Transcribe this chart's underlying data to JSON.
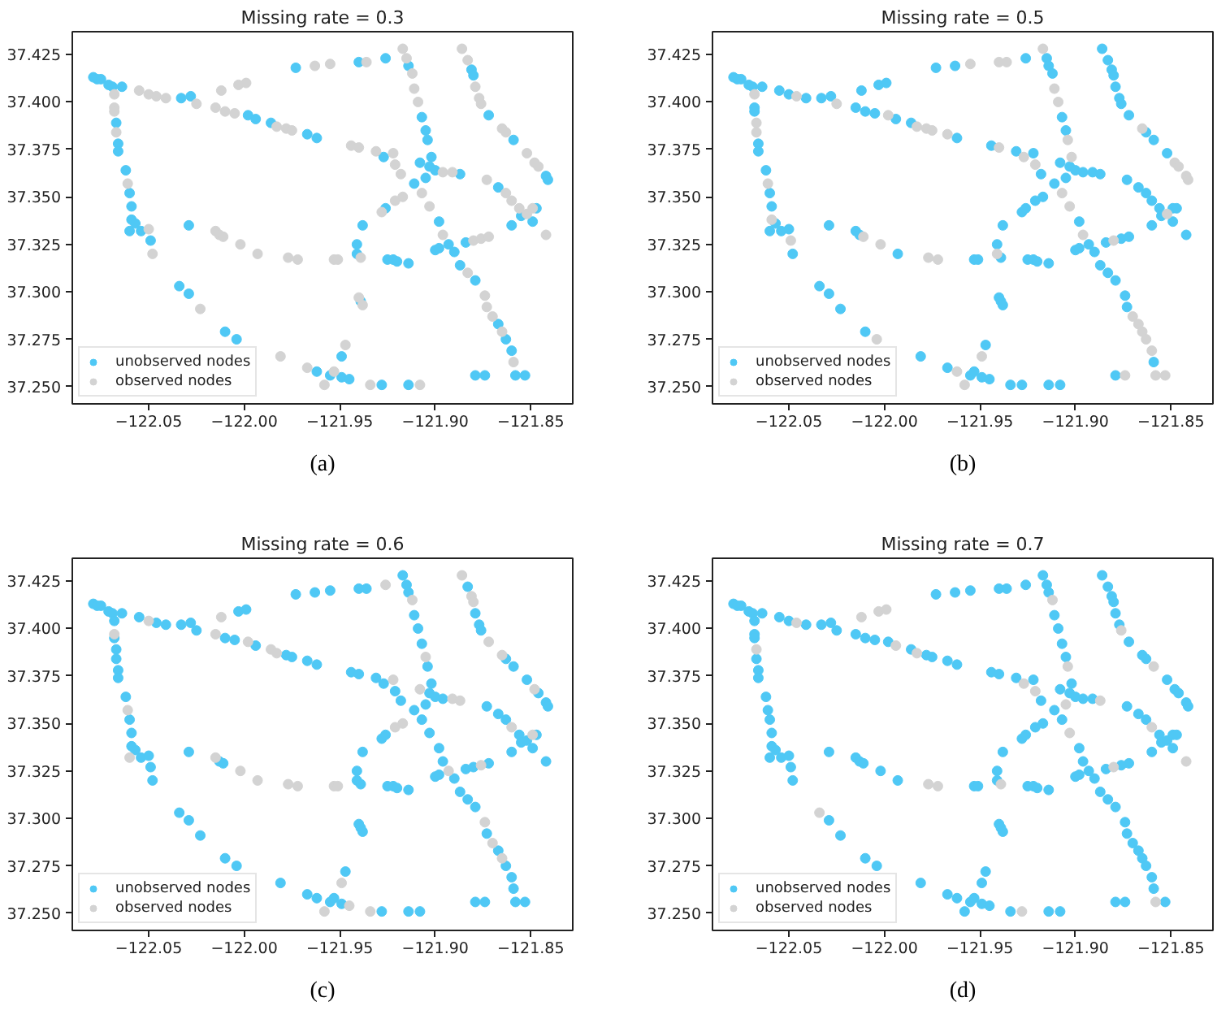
{
  "chart_data": [
    {
      "type": "scatter",
      "title": "Missing rate = 0.3",
      "annotations": [
        "(a)"
      ],
      "xlim": [
        -122.09,
        -121.828
      ],
      "ylim": [
        37.241,
        37.437
      ],
      "xticks": [
        {
          "value": -122.05,
          "label": "−122.05"
        },
        {
          "value": -122.0,
          "label": "−122.00"
        },
        {
          "value": -121.95,
          "label": "−121.95"
        },
        {
          "value": -121.9,
          "label": "−121.90"
        },
        {
          "value": -121.85,
          "label": "−121.85"
        }
      ],
      "yticks": [
        {
          "value": 37.25,
          "label": "37.250"
        },
        37.275,
        {
          "value": 37.3,
          "label": "37.300"
        },
        37.325,
        {
          "value": 37.35,
          "label": "37.350"
        },
        37.375,
        {
          "value": 37.4,
          "label": "37.400"
        },
        37.425
      ],
      "legend": "bottom left",
      "marker": "circle",
      "series": [
        {
          "name": "unobserved nodes",
          "color": "#4fc8f5",
          "x": [
            -122.079,
            -122.077,
            -122.075,
            -122.071,
            -122.069,
            -122.064,
            -122.033,
            -122.028,
            -121.998,
            -121.994,
            -121.986,
            -121.967,
            -121.962,
            -121.927,
            -121.908,
            -121.973,
            -121.94,
            -121.926,
            -121.914,
            -121.907,
            -121.905,
            -121.904,
            -121.902,
            -121.903,
            -121.9,
            -121.887,
            -121.905,
            -121.881,
            -121.88,
            -121.872,
            -121.859,
            -121.842,
            -121.841,
            -121.867,
            -121.855,
            -121.847,
            -121.849,
            -121.86,
            -121.9,
            -121.898,
            -121.893,
            -121.89,
            -121.884,
            -121.898,
            -121.887,
            -121.879,
            -121.867,
            -121.863,
            -121.86,
            -121.858,
            -121.853,
            -121.879,
            -121.874,
            -121.938,
            -121.926,
            -121.911,
            -121.941,
            -121.941,
            -121.939,
            -122.029,
            -121.925,
            -121.922,
            -121.92,
            -121.914,
            -122.034,
            -122.029,
            -122.01,
            -122.004,
            -121.962,
            -121.955,
            -121.949,
            -121.945,
            -121.949,
            -121.928,
            -121.914,
            -122.067,
            -122.066,
            -122.066,
            -122.062,
            -122.06,
            -122.059,
            -122.059,
            -122.057,
            -122.06,
            -122.054,
            -122.049
          ],
          "values": [
            37.413,
            37.412,
            37.412,
            37.409,
            37.408,
            37.408,
            37.402,
            37.403,
            37.393,
            37.391,
            37.389,
            37.383,
            37.381,
            37.371,
            37.368,
            37.418,
            37.421,
            37.423,
            37.419,
            37.392,
            37.385,
            37.38,
            37.371,
            37.366,
            37.364,
            37.362,
            37.36,
            37.417,
            37.414,
            37.393,
            37.38,
            37.361,
            37.359,
            37.355,
            37.34,
            37.344,
            37.337,
            37.335,
            37.322,
            37.323,
            37.325,
            37.321,
            37.326,
            37.337,
            37.314,
            37.306,
            37.283,
            37.275,
            37.269,
            37.256,
            37.256,
            37.256,
            37.256,
            37.335,
            37.344,
            37.357,
            37.325,
            37.32,
            37.295,
            37.335,
            37.317,
            37.317,
            37.316,
            37.315,
            37.303,
            37.299,
            37.279,
            37.275,
            37.258,
            37.256,
            37.255,
            37.254,
            37.266,
            37.251,
            37.251,
            37.389,
            37.378,
            37.374,
            37.364,
            37.352,
            37.345,
            37.338,
            37.336,
            37.332,
            37.332,
            37.327
          ]
        },
        {
          "name": "observed nodes",
          "color": "#d3d3d3",
          "x": [
            -122.055,
            -122.05,
            -122.046,
            -122.041,
            -122.025,
            -122.015,
            -122.01,
            -122.005,
            -121.983,
            -121.978,
            -121.975,
            -121.944,
            -121.94,
            -121.931,
            -121.922,
            -121.921,
            -121.918,
            -122.012,
            -122.003,
            -121.999,
            -121.963,
            -121.955,
            -121.936,
            -121.917,
            -121.915,
            -121.912,
            -121.911,
            -121.909,
            -121.896,
            -121.891,
            -121.886,
            -121.883,
            -121.879,
            -121.877,
            -121.876,
            -121.865,
            -121.863,
            -121.852,
            -121.848,
            -121.846,
            -121.873,
            -121.863,
            -121.86,
            -121.856,
            -121.852,
            -121.849,
            -121.842,
            -121.88,
            -121.876,
            -121.872,
            -121.907,
            -121.903,
            -121.896,
            -121.883,
            -121.874,
            -121.873,
            -121.87,
            -121.865,
            -121.859,
            -121.928,
            -121.921,
            -121.917,
            -121.939,
            -121.94,
            -121.938,
            -122.015,
            -122.013,
            -122.011,
            -122.002,
            -121.993,
            -121.977,
            -121.972,
            -121.953,
            -121.951,
            -122.023,
            -121.981,
            -121.967,
            -121.958,
            -121.953,
            -121.947,
            -121.934,
            -121.908,
            -122.068,
            -122.068,
            -122.068,
            -122.067,
            -122.061,
            -122.05,
            -122.048
          ],
          "values": [
            37.406,
            37.404,
            37.403,
            37.402,
            37.399,
            37.397,
            37.395,
            37.394,
            37.387,
            37.386,
            37.385,
            37.377,
            37.376,
            37.374,
            37.373,
            37.367,
            37.362,
            37.406,
            37.409,
            37.41,
            37.419,
            37.42,
            37.421,
            37.428,
            37.423,
            37.415,
            37.407,
            37.4,
            37.363,
            37.363,
            37.428,
            37.422,
            37.408,
            37.402,
            37.399,
            37.386,
            37.384,
            37.373,
            37.368,
            37.366,
            37.359,
            37.352,
            37.348,
            37.344,
            37.341,
            37.344,
            37.33,
            37.327,
            37.328,
            37.329,
            37.352,
            37.345,
            37.33,
            37.31,
            37.298,
            37.292,
            37.287,
            37.279,
            37.263,
            37.342,
            37.348,
            37.35,
            37.318,
            37.297,
            37.293,
            37.332,
            37.33,
            37.329,
            37.325,
            37.32,
            37.318,
            37.317,
            37.317,
            37.317,
            37.291,
            37.266,
            37.26,
            37.251,
            37.258,
            37.272,
            37.251,
            37.251,
            37.404,
            37.397,
            37.395,
            37.384,
            37.357,
            37.333,
            37.32
          ]
        }
      ]
    },
    {
      "type": "scatter",
      "title": "Missing rate = 0.5",
      "annotations": [
        "(b)"
      ],
      "xlim": [
        -122.09,
        -121.828
      ],
      "ylim": [
        37.241,
        37.437
      ],
      "xticks": [
        {
          "value": -122.05,
          "label": "−122.05"
        },
        {
          "value": -122.0,
          "label": "−122.00"
        },
        {
          "value": -121.95,
          "label": "−121.95"
        },
        {
          "value": -121.9,
          "label": "−121.90"
        },
        {
          "value": -121.85,
          "label": "−121.85"
        }
      ],
      "yticks": [
        {
          "value": 37.25,
          "label": "37.250"
        },
        37.275,
        {
          "value": 37.3,
          "label": "37.300"
        },
        37.325,
        {
          "value": 37.35,
          "label": "37.350"
        },
        37.375,
        {
          "value": 37.4,
          "label": "37.400"
        },
        37.425
      ],
      "legend": "bottom left",
      "marker": "circle",
      "series": [
        {
          "name": "unobserved nodes",
          "color": "#4fc8f5",
          "x": [
            -122.079,
            -122.077,
            -122.075,
            -122.071,
            -122.069,
            -122.064,
            -122.055,
            -122.05,
            -122.041,
            -122.033,
            -122.028,
            -122.015,
            -122.01,
            -122.005,
            -121.994,
            -121.986,
            -121.962,
            -121.944,
            -121.931,
            -121.922,
            -121.918,
            -121.908,
            -122.012,
            -122.003,
            -121.999,
            -121.973,
            -121.963,
            -121.926,
            -121.915,
            -121.914,
            -121.912,
            -121.907,
            -121.905,
            -121.903,
            -121.9,
            -121.896,
            -121.891,
            -121.887,
            -121.905,
            -121.886,
            -121.883,
            -121.881,
            -121.88,
            -121.879,
            -121.877,
            -121.876,
            -121.872,
            -121.863,
            -121.859,
            -121.852,
            -121.873,
            -121.867,
            -121.863,
            -121.86,
            -121.856,
            -121.855,
            -121.849,
            -121.847,
            -121.849,
            -121.842,
            -121.86,
            -121.9,
            -121.898,
            -121.893,
            -121.89,
            -121.884,
            -121.876,
            -121.872,
            -121.898,
            -121.887,
            -121.883,
            -121.879,
            -121.874,
            -121.873,
            -121.859,
            -121.879,
            -121.938,
            -121.928,
            -121.926,
            -121.921,
            -121.917,
            -121.911,
            -121.941,
            -121.939,
            -121.94,
            -121.939,
            -121.938,
            -122.029,
            -122.015,
            -122.013,
            -121.993,
            -121.953,
            -121.951,
            -121.925,
            -121.922,
            -121.92,
            -121.914,
            -122.034,
            -122.029,
            -122.023,
            -122.01,
            -121.981,
            -121.967,
            -121.955,
            -121.953,
            -121.949,
            -121.945,
            -121.947,
            -121.934,
            -121.928,
            -121.914,
            -121.908,
            -122.068,
            -122.068,
            -122.066,
            -122.066,
            -122.062,
            -122.06,
            -122.059,
            -122.057,
            -122.06,
            -122.054,
            -122.05,
            -122.048
          ],
          "values": [
            37.413,
            37.412,
            37.412,
            37.409,
            37.408,
            37.408,
            37.406,
            37.404,
            37.402,
            37.402,
            37.403,
            37.397,
            37.395,
            37.394,
            37.391,
            37.389,
            37.381,
            37.377,
            37.374,
            37.373,
            37.362,
            37.368,
            37.406,
            37.409,
            37.41,
            37.418,
            37.419,
            37.423,
            37.423,
            37.419,
            37.415,
            37.392,
            37.385,
            37.366,
            37.364,
            37.363,
            37.363,
            37.362,
            37.36,
            37.428,
            37.422,
            37.417,
            37.414,
            37.408,
            37.402,
            37.399,
            37.393,
            37.384,
            37.38,
            37.373,
            37.359,
            37.355,
            37.352,
            37.348,
            37.344,
            37.34,
            37.344,
            37.344,
            37.337,
            37.33,
            37.335,
            37.322,
            37.323,
            37.325,
            37.321,
            37.326,
            37.328,
            37.329,
            37.337,
            37.314,
            37.31,
            37.306,
            37.298,
            37.292,
            37.263,
            37.256,
            37.335,
            37.342,
            37.344,
            37.348,
            37.35,
            37.357,
            37.325,
            37.318,
            37.297,
            37.295,
            37.293,
            37.335,
            37.332,
            37.33,
            37.32,
            37.317,
            37.317,
            37.317,
            37.317,
            37.316,
            37.315,
            37.303,
            37.299,
            37.291,
            37.279,
            37.266,
            37.26,
            37.256,
            37.258,
            37.255,
            37.254,
            37.272,
            37.251,
            37.251,
            37.251,
            37.251,
            37.397,
            37.395,
            37.378,
            37.374,
            37.364,
            37.352,
            37.345,
            37.336,
            37.332,
            37.332,
            37.333,
            37.32
          ]
        },
        {
          "name": "observed nodes",
          "color": "#d3d3d3",
          "x": [
            -122.046,
            -122.025,
            -121.998,
            -121.983,
            -121.978,
            -121.975,
            -121.967,
            -121.94,
            -121.927,
            -121.921,
            -121.955,
            -121.94,
            -121.936,
            -121.917,
            -121.911,
            -121.909,
            -121.904,
            -121.902,
            -121.865,
            -121.848,
            -121.846,
            -121.842,
            -121.841,
            -121.852,
            -121.88,
            -121.907,
            -121.903,
            -121.896,
            -121.87,
            -121.867,
            -121.865,
            -121.863,
            -121.86,
            -121.858,
            -121.853,
            -121.874,
            -121.941,
            -122.011,
            -122.002,
            -121.977,
            -121.972,
            -122.004,
            -121.962,
            -121.958,
            -121.949,
            -122.068,
            -122.067,
            -122.067,
            -122.061,
            -122.059,
            -122.049
          ],
          "values": [
            37.403,
            37.399,
            37.393,
            37.387,
            37.386,
            37.385,
            37.383,
            37.376,
            37.371,
            37.367,
            37.42,
            37.421,
            37.421,
            37.428,
            37.407,
            37.4,
            37.38,
            37.371,
            37.386,
            37.368,
            37.366,
            37.361,
            37.359,
            37.341,
            37.327,
            37.352,
            37.345,
            37.33,
            37.287,
            37.283,
            37.279,
            37.275,
            37.269,
            37.256,
            37.256,
            37.256,
            37.32,
            37.329,
            37.325,
            37.318,
            37.317,
            37.275,
            37.258,
            37.251,
            37.266,
            37.404,
            37.389,
            37.384,
            37.357,
            37.338,
            37.327
          ]
        }
      ]
    },
    {
      "type": "scatter",
      "title": "Missing rate = 0.6",
      "annotations": [
        "(c)"
      ],
      "xlim": [
        -122.09,
        -121.828
      ],
      "ylim": [
        37.241,
        37.437
      ],
      "xticks": [
        {
          "value": -122.05,
          "label": "−122.05"
        },
        {
          "value": -122.0,
          "label": "−122.00"
        },
        {
          "value": -121.95,
          "label": "−121.95"
        },
        {
          "value": -121.9,
          "label": "−121.90"
        },
        {
          "value": -121.85,
          "label": "−121.85"
        }
      ],
      "yticks": [
        {
          "value": 37.25,
          "label": "37.250"
        },
        37.275,
        {
          "value": 37.3,
          "label": "37.300"
        },
        37.325,
        {
          "value": 37.35,
          "label": "37.350"
        },
        37.375,
        {
          "value": 37.4,
          "label": "37.400"
        },
        37.425
      ],
      "legend": "bottom left",
      "marker": "circle",
      "series": [
        {
          "name": "unobserved nodes",
          "color": "#4fc8f5",
          "x": [
            -122.079,
            -122.077,
            -122.075,
            -122.071,
            -122.069,
            -122.064,
            -122.055,
            -122.046,
            -122.041,
            -122.033,
            -122.028,
            -122.025,
            -122.01,
            -122.005,
            -121.994,
            -121.978,
            -121.975,
            -121.967,
            -121.962,
            -121.944,
            -121.94,
            -121.931,
            -121.927,
            -121.921,
            -121.918,
            -122.003,
            -121.999,
            -121.973,
            -121.963,
            -121.955,
            -121.94,
            -121.936,
            -121.917,
            -121.915,
            -121.914,
            -121.911,
            -121.909,
            -121.907,
            -121.904,
            -121.902,
            -121.903,
            -121.9,
            -121.896,
            -121.905,
            -121.883,
            -121.879,
            -121.877,
            -121.876,
            -121.863,
            -121.859,
            -121.852,
            -121.846,
            -121.842,
            -121.841,
            -121.873,
            -121.867,
            -121.863,
            -121.856,
            -121.855,
            -121.852,
            -121.847,
            -121.849,
            -121.842,
            -121.86,
            -121.9,
            -121.898,
            -121.89,
            -121.884,
            -121.88,
            -121.872,
            -121.907,
            -121.903,
            -121.898,
            -121.896,
            -121.887,
            -121.883,
            -121.879,
            -121.873,
            -121.867,
            -121.863,
            -121.86,
            -121.859,
            -121.858,
            -121.853,
            -121.879,
            -121.874,
            -121.938,
            -121.928,
            -121.926,
            -121.911,
            -121.941,
            -121.941,
            -121.939,
            -121.94,
            -121.939,
            -121.938,
            -122.029,
            -122.013,
            -122.011,
            -121.925,
            -121.922,
            -121.92,
            -121.914,
            -122.034,
            -122.029,
            -122.023,
            -122.01,
            -122.004,
            -121.981,
            -121.967,
            -121.962,
            -121.955,
            -121.953,
            -121.949,
            -121.947,
            -121.928,
            -121.914,
            -121.908,
            -122.068,
            -122.068,
            -122.067,
            -122.067,
            -122.066,
            -122.066,
            -122.062,
            -122.06,
            -122.059,
            -122.059,
            -122.057,
            -122.054,
            -122.05,
            -122.049,
            -122.048
          ],
          "values": [
            37.413,
            37.412,
            37.412,
            37.409,
            37.408,
            37.408,
            37.406,
            37.403,
            37.402,
            37.402,
            37.403,
            37.399,
            37.395,
            37.394,
            37.391,
            37.386,
            37.385,
            37.383,
            37.381,
            37.377,
            37.376,
            37.374,
            37.371,
            37.367,
            37.362,
            37.409,
            37.41,
            37.418,
            37.419,
            37.42,
            37.421,
            37.421,
            37.428,
            37.423,
            37.419,
            37.407,
            37.4,
            37.392,
            37.38,
            37.371,
            37.366,
            37.364,
            37.363,
            37.36,
            37.422,
            37.408,
            37.402,
            37.399,
            37.384,
            37.38,
            37.373,
            37.366,
            37.361,
            37.359,
            37.359,
            37.355,
            37.352,
            37.344,
            37.34,
            37.341,
            37.344,
            37.337,
            37.33,
            37.335,
            37.322,
            37.323,
            37.321,
            37.326,
            37.327,
            37.329,
            37.352,
            37.345,
            37.337,
            37.33,
            37.314,
            37.31,
            37.306,
            37.292,
            37.283,
            37.275,
            37.269,
            37.263,
            37.256,
            37.256,
            37.256,
            37.256,
            37.335,
            37.342,
            37.344,
            37.357,
            37.325,
            37.32,
            37.318,
            37.297,
            37.295,
            37.293,
            37.335,
            37.33,
            37.329,
            37.317,
            37.317,
            37.316,
            37.315,
            37.303,
            37.299,
            37.291,
            37.279,
            37.275,
            37.266,
            37.26,
            37.258,
            37.256,
            37.258,
            37.255,
            37.272,
            37.251,
            37.251,
            37.251,
            37.404,
            37.395,
            37.389,
            37.384,
            37.378,
            37.374,
            37.364,
            37.352,
            37.345,
            37.338,
            37.336,
            37.332,
            37.333,
            37.327,
            37.32
          ]
        },
        {
          "name": "observed nodes",
          "color": "#d3d3d3",
          "x": [
            -122.05,
            -122.015,
            -121.998,
            -121.986,
            -121.983,
            -121.922,
            -121.908,
            -122.012,
            -121.926,
            -121.912,
            -121.905,
            -121.891,
            -121.887,
            -121.886,
            -121.881,
            -121.88,
            -121.872,
            -121.865,
            -121.848,
            -121.86,
            -121.849,
            -121.893,
            -121.876,
            -121.874,
            -121.87,
            -121.865,
            -121.921,
            -121.917,
            -122.015,
            -122.002,
            -121.993,
            -121.977,
            -121.972,
            -121.953,
            -121.951,
            -121.958,
            -121.945,
            -121.949,
            -121.934,
            -122.068,
            -122.061,
            -122.06
          ],
          "values": [
            37.404,
            37.397,
            37.393,
            37.389,
            37.387,
            37.373,
            37.368,
            37.406,
            37.423,
            37.415,
            37.385,
            37.363,
            37.362,
            37.428,
            37.417,
            37.414,
            37.393,
            37.386,
            37.368,
            37.348,
            37.344,
            37.325,
            37.328,
            37.298,
            37.287,
            37.279,
            37.348,
            37.35,
            37.332,
            37.325,
            37.32,
            37.318,
            37.317,
            37.317,
            37.317,
            37.251,
            37.254,
            37.266,
            37.251,
            37.397,
            37.357,
            37.332
          ]
        }
      ]
    },
    {
      "type": "scatter",
      "title": "Missing rate = 0.7",
      "annotations": [
        "(d)"
      ],
      "xlim": [
        -122.09,
        -121.828
      ],
      "ylim": [
        37.241,
        37.437
      ],
      "xticks": [
        {
          "value": -122.05,
          "label": "−122.05"
        },
        {
          "value": -122.0,
          "label": "−122.00"
        },
        {
          "value": -121.95,
          "label": "−121.95"
        },
        {
          "value": -121.9,
          "label": "−121.90"
        },
        {
          "value": -121.85,
          "label": "−121.85"
        }
      ],
      "yticks": [
        {
          "value": 37.25,
          "label": "37.250"
        },
        37.275,
        {
          "value": 37.3,
          "label": "37.300"
        },
        37.325,
        {
          "value": 37.35,
          "label": "37.350"
        },
        37.375,
        {
          "value": 37.4,
          "label": "37.400"
        },
        37.425
      ],
      "legend": "bottom left",
      "marker": "circle",
      "series": [
        {
          "name": "unobserved nodes",
          "color": "#4fc8f5",
          "x": [
            -122.079,
            -122.077,
            -122.075,
            -122.071,
            -122.069,
            -122.064,
            -122.055,
            -122.05,
            -122.041,
            -122.033,
            -122.028,
            -122.025,
            -122.015,
            -122.01,
            -122.005,
            -121.998,
            -121.986,
            -121.978,
            -121.975,
            -121.967,
            -121.962,
            -121.944,
            -121.94,
            -121.931,
            -121.922,
            -121.918,
            -121.908,
            -121.973,
            -121.963,
            -121.955,
            -121.94,
            -121.936,
            -121.926,
            -121.917,
            -121.915,
            -121.914,
            -121.911,
            -121.909,
            -121.907,
            -121.905,
            -121.902,
            -121.903,
            -121.9,
            -121.896,
            -121.891,
            -121.886,
            -121.883,
            -121.881,
            -121.88,
            -121.879,
            -121.877,
            -121.872,
            -121.865,
            -121.863,
            -121.852,
            -121.848,
            -121.846,
            -121.842,
            -121.841,
            -121.873,
            -121.867,
            -121.863,
            -121.856,
            -121.855,
            -121.852,
            -121.849,
            -121.847,
            -121.849,
            -121.86,
            -121.9,
            -121.898,
            -121.893,
            -121.89,
            -121.884,
            -121.876,
            -121.872,
            -121.907,
            -121.898,
            -121.896,
            -121.887,
            -121.883,
            -121.879,
            -121.874,
            -121.873,
            -121.87,
            -121.867,
            -121.865,
            -121.863,
            -121.86,
            -121.859,
            -121.853,
            -121.879,
            -121.874,
            -121.938,
            -121.928,
            -121.926,
            -121.921,
            -121.917,
            -121.911,
            -121.941,
            -121.941,
            -121.94,
            -121.939,
            -121.938,
            -122.029,
            -122.015,
            -122.013,
            -122.011,
            -122.002,
            -121.993,
            -121.953,
            -121.951,
            -121.925,
            -121.922,
            -121.92,
            -121.914,
            -122.029,
            -122.023,
            -122.01,
            -122.004,
            -121.981,
            -121.967,
            -121.962,
            -121.958,
            -121.955,
            -121.953,
            -121.949,
            -121.945,
            -121.949,
            -121.947,
            -121.934,
            -121.914,
            -121.908,
            -122.068,
            -122.068,
            -122.068,
            -122.067,
            -122.066,
            -122.066,
            -122.062,
            -122.061,
            -122.06,
            -122.059,
            -122.059,
            -122.057,
            -122.06,
            -122.054,
            -122.05,
            -122.049,
            -122.048
          ],
          "values": [
            37.413,
            37.412,
            37.412,
            37.409,
            37.408,
            37.408,
            37.406,
            37.404,
            37.402,
            37.402,
            37.403,
            37.399,
            37.397,
            37.395,
            37.394,
            37.393,
            37.389,
            37.386,
            37.385,
            37.383,
            37.381,
            37.377,
            37.376,
            37.374,
            37.373,
            37.362,
            37.368,
            37.418,
            37.419,
            37.42,
            37.421,
            37.421,
            37.423,
            37.428,
            37.423,
            37.419,
            37.407,
            37.4,
            37.392,
            37.385,
            37.371,
            37.366,
            37.364,
            37.363,
            37.363,
            37.428,
            37.422,
            37.417,
            37.414,
            37.408,
            37.402,
            37.393,
            37.386,
            37.384,
            37.373,
            37.368,
            37.366,
            37.361,
            37.359,
            37.359,
            37.355,
            37.352,
            37.344,
            37.34,
            37.341,
            37.344,
            37.344,
            37.337,
            37.335,
            37.322,
            37.323,
            37.325,
            37.321,
            37.326,
            37.328,
            37.329,
            37.352,
            37.337,
            37.33,
            37.314,
            37.31,
            37.306,
            37.298,
            37.292,
            37.287,
            37.283,
            37.279,
            37.275,
            37.269,
            37.263,
            37.256,
            37.256,
            37.256,
            37.335,
            37.342,
            37.344,
            37.348,
            37.35,
            37.357,
            37.325,
            37.32,
            37.297,
            37.295,
            37.293,
            37.335,
            37.332,
            37.33,
            37.329,
            37.325,
            37.32,
            37.317,
            37.317,
            37.317,
            37.317,
            37.316,
            37.315,
            37.299,
            37.291,
            37.279,
            37.275,
            37.266,
            37.26,
            37.258,
            37.251,
            37.256,
            37.258,
            37.255,
            37.254,
            37.266,
            37.272,
            37.251,
            37.251,
            37.251,
            37.404,
            37.397,
            37.395,
            37.384,
            37.378,
            37.374,
            37.364,
            37.357,
            37.352,
            37.345,
            37.338,
            37.336,
            37.332,
            37.332,
            37.333,
            37.327,
            37.32
          ]
        },
        {
          "name": "observed nodes",
          "color": "#d3d3d3",
          "x": [
            -122.046,
            -121.994,
            -121.983,
            -121.927,
            -121.921,
            -122.012,
            -122.003,
            -121.999,
            -121.912,
            -121.904,
            -121.887,
            -121.905,
            -121.876,
            -121.859,
            -121.86,
            -121.842,
            -121.88,
            -121.903,
            -121.858,
            -121.939,
            -121.977,
            -121.972,
            -122.034,
            -121.928,
            -122.067
          ],
          "values": [
            37.403,
            37.391,
            37.387,
            37.371,
            37.367,
            37.406,
            37.409,
            37.41,
            37.415,
            37.38,
            37.362,
            37.36,
            37.399,
            37.38,
            37.348,
            37.33,
            37.327,
            37.345,
            37.256,
            37.318,
            37.318,
            37.317,
            37.303,
            37.251,
            37.389
          ]
        }
      ]
    }
  ]
}
